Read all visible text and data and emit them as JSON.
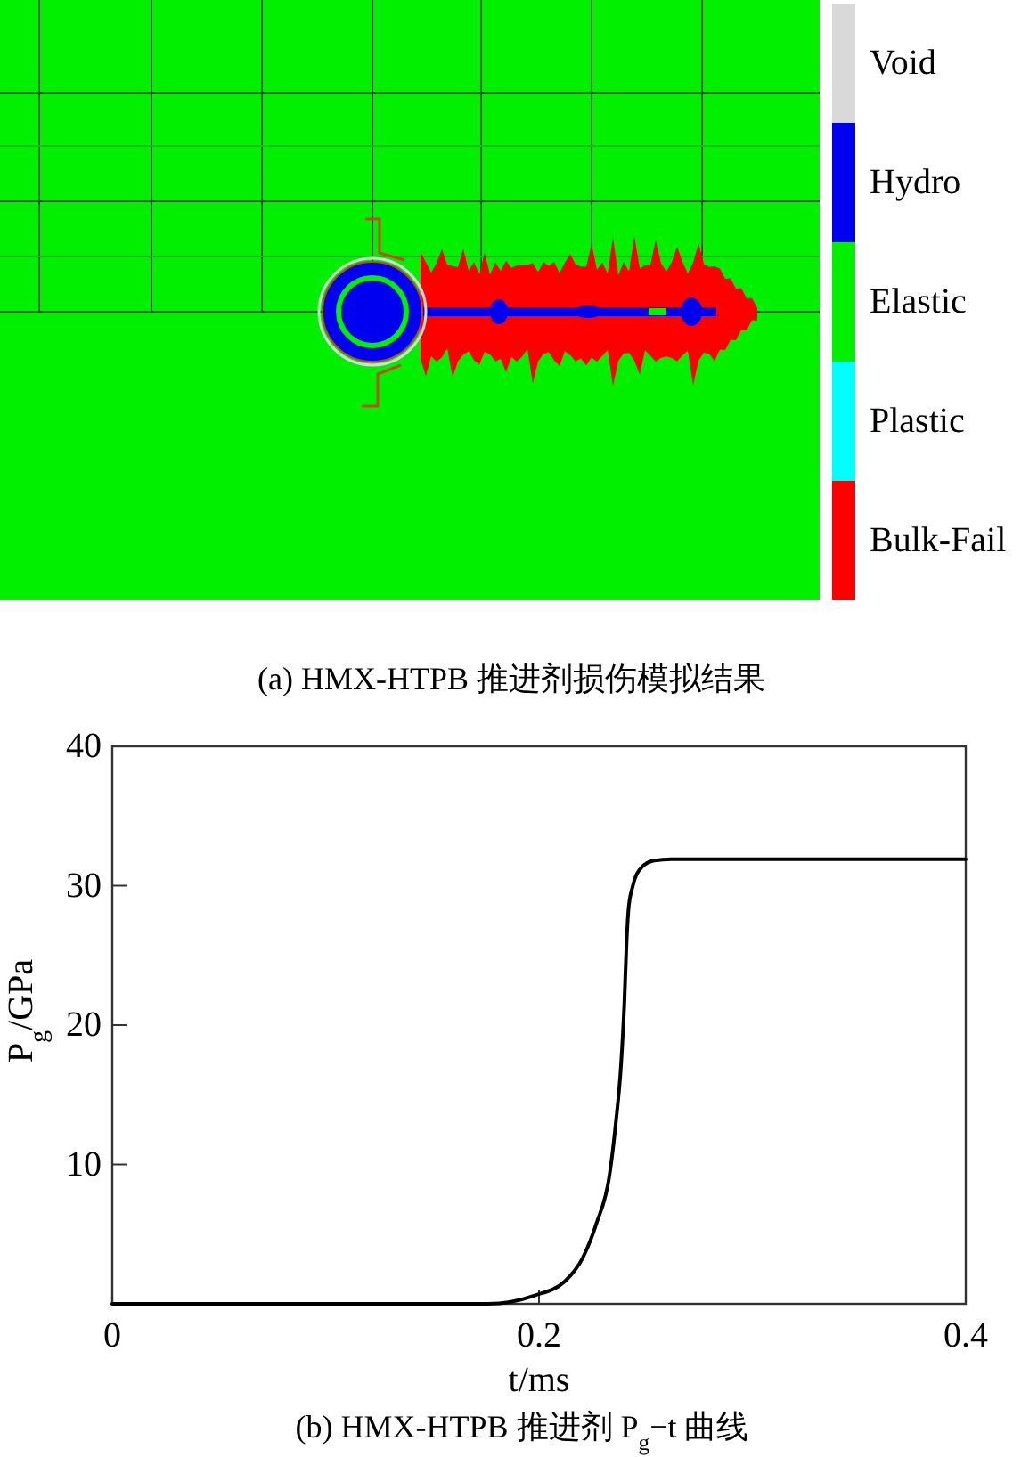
{
  "chart_data": [
    {
      "type": "other",
      "categories": [
        "Void",
        "Hydro",
        "Elastic",
        "Plastic",
        "Bulk-Fail"
      ],
      "colors": [
        "#d9d9d9",
        "#0000f0",
        "#00f000",
        "#00ffff",
        "#ff0000"
      ],
      "annotations": [
        "(a) HMX-HTPB 推进剂损伤模拟结果"
      ]
    },
    {
      "type": "line",
      "x": [
        0,
        0.176,
        0.198,
        0.212,
        0.2205,
        0.227,
        0.233,
        0.236,
        0.2385,
        0.24,
        0.241,
        0.242,
        0.244,
        0.248,
        0.254,
        0.262,
        0.4
      ],
      "values": [
        0,
        0,
        0.6,
        1.6,
        3.3,
        5.8,
        9.2,
        13.0,
        17.3,
        21.6,
        25.8,
        28.4,
        30.0,
        31.3,
        31.8,
        31.9,
        31.9
      ],
      "color": "#000000",
      "xlim": [
        0,
        0.4
      ],
      "xticks": [
        0,
        0.2,
        0.4
      ],
      "ylim": [
        0,
        40
      ],
      "yticks": [
        10,
        20,
        30,
        40
      ],
      "xlabel": "t/ms",
      "ylabel": "P$_{g}$/GPa",
      "annotations": [
        "(b) HMX-HTPB 推进剂 P$_{g}$−t 曲线"
      ]
    }
  ]
}
